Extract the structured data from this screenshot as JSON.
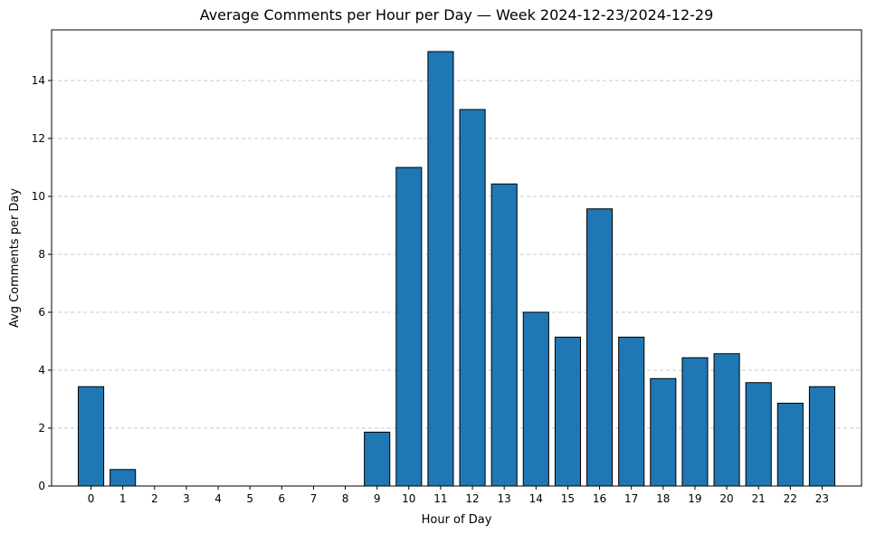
{
  "chart_data": {
    "type": "bar",
    "title": "Average Comments per Hour per Day — Week 2024-12-23/2024-12-29",
    "xlabel": "Hour of Day",
    "ylabel": "Avg Comments per Day",
    "categories": [
      "0",
      "1",
      "2",
      "3",
      "4",
      "5",
      "6",
      "7",
      "8",
      "9",
      "10",
      "11",
      "12",
      "13",
      "14",
      "15",
      "16",
      "17",
      "18",
      "19",
      "20",
      "21",
      "22",
      "23"
    ],
    "values": [
      3.43,
      0.57,
      0,
      0,
      0,
      0,
      0,
      0,
      0,
      1.86,
      11.0,
      15.0,
      13.0,
      10.43,
      6.0,
      5.14,
      9.57,
      5.14,
      3.71,
      4.43,
      4.57,
      3.57,
      2.86,
      3.43
    ],
    "ylim": [
      0,
      15.75
    ],
    "yticks": [
      0,
      2,
      4,
      6,
      8,
      10,
      12,
      14
    ],
    "grid": "y-dashed",
    "colors": {
      "bar": "#1f77b4",
      "edge": "#000000",
      "grid": "#c8c8c8"
    }
  }
}
